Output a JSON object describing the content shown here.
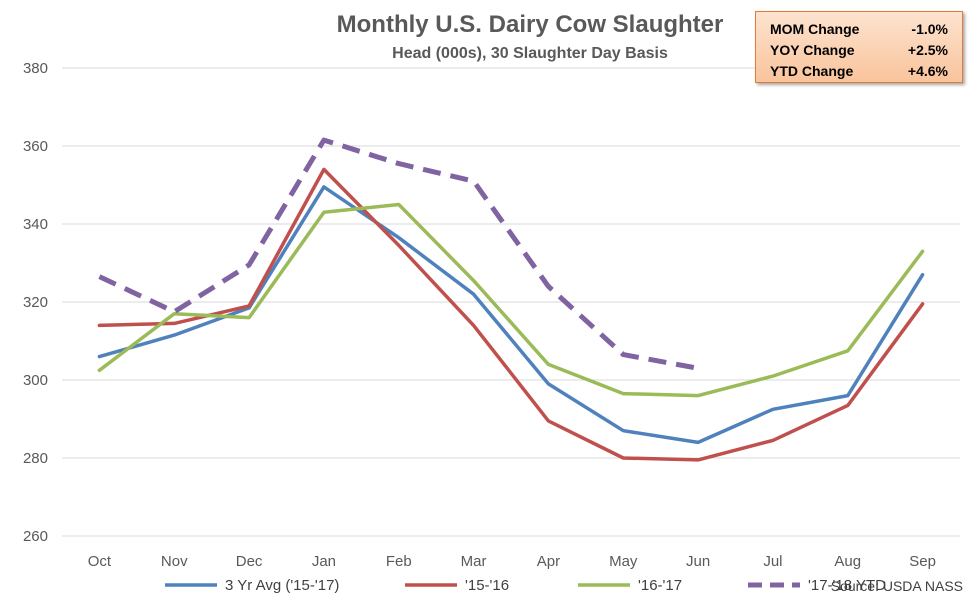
{
  "chart_data": {
    "type": "line",
    "title": "Monthly U.S. Dairy Cow Slaughter",
    "subtitle": "Head (000s), 30 Slaughter Day Basis",
    "categories": [
      "Oct",
      "Nov",
      "Dec",
      "Jan",
      "Feb",
      "Mar",
      "Apr",
      "May",
      "Jun",
      "Jul",
      "Aug",
      "Sep"
    ],
    "ylim": [
      260,
      380
    ],
    "yticks": [
      "260",
      "280",
      "300",
      "320",
      "340",
      "360",
      "380"
    ],
    "grid": true,
    "legend_position": "bottom",
    "source": "Source: USDA NASS",
    "series": [
      {
        "name": "3 Yr Avg ('15-'17)",
        "color": "#4f81bd",
        "dashed": false,
        "values": [
          306,
          311.5,
          318.5,
          349.5,
          336.5,
          322,
          299,
          287,
          284,
          292.5,
          296,
          327
        ]
      },
      {
        "name": "'15-'16",
        "color": "#c0504d",
        "dashed": false,
        "values": [
          314,
          314.5,
          319,
          354,
          334.5,
          314,
          289.5,
          280,
          279.5,
          284.5,
          293.5,
          319.5
        ]
      },
      {
        "name": "'16-'17",
        "color": "#9bbb59",
        "dashed": false,
        "values": [
          302.5,
          317,
          316,
          343,
          345,
          325.5,
          304,
          296.5,
          296,
          301,
          307.5,
          333
        ]
      },
      {
        "name": "'17-'18 YTD",
        "color": "#8064a2",
        "dashed": true,
        "values": [
          326.5,
          317.5,
          329.5,
          361.5,
          355.5,
          351,
          324,
          306.5,
          303,
          null,
          null,
          null
        ]
      }
    ]
  },
  "stats": [
    {
      "label": "MOM Change",
      "value": "-1.0%"
    },
    {
      "label": "YOY Change",
      "value": "+2.5%"
    },
    {
      "label": "YTD Change",
      "value": "+4.6%"
    }
  ]
}
